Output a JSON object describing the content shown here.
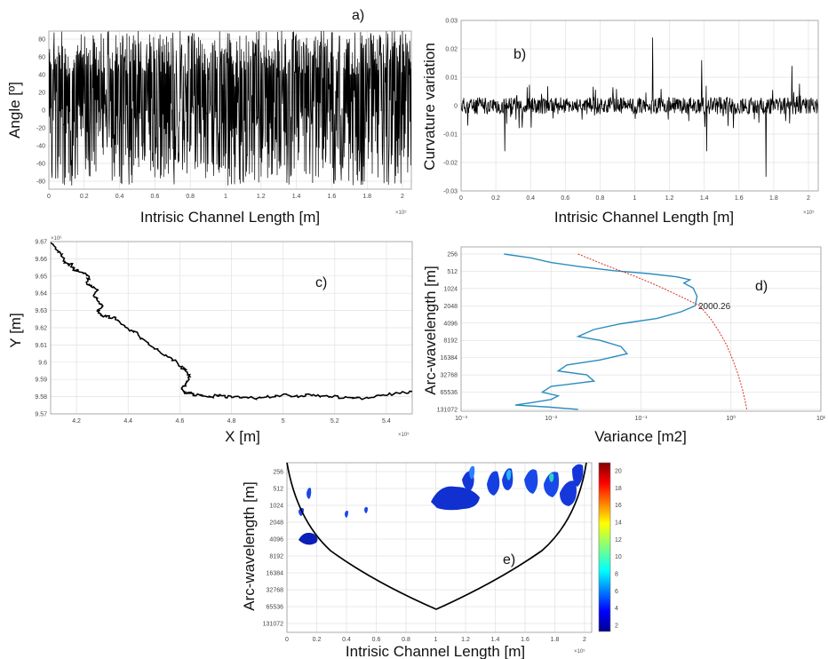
{
  "panel_a": {
    "label": "a)",
    "xlabel": "Intrisic Channel Length [m]",
    "ylabel": "Angle [º]",
    "x_exp": "×10⁵",
    "xticks": [
      "0",
      "0.2",
      "0.4",
      "0.6",
      "0.8",
      "1",
      "1.2",
      "1.4",
      "1.6",
      "1.8",
      "2"
    ],
    "yticks": [
      "80",
      "60",
      "40",
      "20",
      "0",
      "-20",
      "-40",
      "-60",
      "-80"
    ]
  },
  "panel_b": {
    "label": "b)",
    "xlabel": "Intrisic Channel Length [m]",
    "ylabel": "Curvature variation",
    "x_exp": "×10⁵",
    "xticks": [
      "0",
      "0.2",
      "0.4",
      "0.6",
      "0.8",
      "1",
      "1.2",
      "1.4",
      "1.6",
      "1.8",
      "2"
    ],
    "yticks": [
      "0.03",
      "0.02",
      "0.01",
      "0",
      "-0.01",
      "-0.02",
      "-0.03"
    ]
  },
  "panel_c": {
    "label": "c)",
    "xlabel": "X [m]",
    "ylabel": "Y [m]",
    "x_exp": "×10⁵",
    "y_exp": "×10⁶",
    "xticks": [
      "4.2",
      "4.4",
      "4.6",
      "4.8",
      "5",
      "5.2",
      "5.4"
    ],
    "yticks": [
      "9.67",
      "9.66",
      "9.65",
      "9.64",
      "9.63",
      "9.62",
      "9.61",
      "9.6",
      "9.59",
      "9.58",
      "9.57"
    ]
  },
  "panel_d": {
    "label": "d)",
    "xlabel": "Variance [m2]",
    "ylabel": "Arc-wavelength [m]",
    "xticks": [
      "10⁻³",
      "10⁻²",
      "10⁻¹",
      "10⁰",
      "10¹"
    ],
    "yticks": [
      "256",
      "512",
      "1024",
      "2048",
      "4096",
      "8192",
      "16384",
      "32768",
      "65536",
      "131072"
    ],
    "annotation": "2000.26"
  },
  "panel_e": {
    "label": "e)",
    "xlabel": "Intrisic Channel Length [m]",
    "ylabel": "Arc-wavelength [m]",
    "x_exp": "×10⁵",
    "xticks": [
      "0",
      "0.2",
      "0.4",
      "0.6",
      "0.8",
      "1",
      "1.2",
      "1.4",
      "1.6",
      "1.8",
      "2"
    ],
    "yticks": [
      "256",
      "512",
      "1024",
      "2048",
      "4096",
      "8192",
      "16384",
      "32768",
      "65536",
      "131072"
    ],
    "colorbar_ticks": [
      "20",
      "18",
      "16",
      "14",
      "12",
      "10",
      "8",
      "6",
      "4",
      "2"
    ]
  },
  "chart_data": [
    {
      "type": "line",
      "panel": "a",
      "xlim": [
        0,
        2.05
      ],
      "ylim": [
        -90,
        90
      ],
      "description_values": "rapidly oscillating angle between -80 and 90 degrees along channel length",
      "series": [
        {
          "color": "#000000"
        }
      ]
    },
    {
      "type": "line",
      "panel": "b",
      "xlim": [
        0,
        2.05
      ],
      "ylim": [
        -0.03,
        0.03
      ],
      "series": [
        {
          "color": "#000000"
        }
      ],
      "peaks": [
        {
          "x": 1.1,
          "y": 0.024
        },
        {
          "x": 1.38,
          "y": 0.016
        },
        {
          "x": 1.9,
          "y": 0.014
        },
        {
          "x": 1.75,
          "y": -0.025
        },
        {
          "x": 0.25,
          "y": -0.016
        },
        {
          "x": 1.41,
          "y": -0.016
        }
      ]
    },
    {
      "type": "line",
      "panel": "c",
      "xlim": [
        4.1,
        5.5
      ],
      "ylim": [
        9.57,
        9.67
      ],
      "series": [
        {
          "color": "#000000",
          "x": [
            4.1,
            4.13,
            4.15,
            4.16,
            4.18,
            4.19,
            4.22,
            4.25,
            4.24,
            4.26,
            4.28,
            4.27,
            4.29,
            4.3,
            4.28,
            4.3,
            4.33,
            4.36,
            4.39,
            4.42,
            4.45,
            4.49,
            4.52,
            4.55,
            4.58,
            4.6,
            4.62,
            4.64,
            4.63,
            4.62,
            4.61,
            4.62,
            4.64,
            4.66,
            4.69,
            4.72,
            4.75,
            4.78,
            4.82,
            4.85,
            4.9,
            4.95,
            5.0,
            5.05,
            5.1,
            5.15,
            5.2,
            5.25,
            5.3,
            5.35,
            5.4,
            5.45,
            5.5
          ],
          "y": [
            9.669,
            9.664,
            9.66,
            9.657,
            9.657,
            9.654,
            9.652,
            9.65,
            9.646,
            9.644,
            9.642,
            9.638,
            9.635,
            9.632,
            9.63,
            9.627,
            9.626,
            9.625,
            9.62,
            9.618,
            9.614,
            9.61,
            9.606,
            9.603,
            9.601,
            9.598,
            9.596,
            9.592,
            9.589,
            9.587,
            9.585,
            9.582,
            9.582,
            9.581,
            9.581,
            9.58,
            9.581,
            9.58,
            9.58,
            9.58,
            9.579,
            9.58,
            9.581,
            9.58,
            9.581,
            9.58,
            9.58,
            9.579,
            9.579,
            9.58,
            9.581,
            9.582,
            9.583
          ]
        }
      ]
    },
    {
      "type": "line",
      "panel": "d",
      "xscale": "log",
      "xlim": [
        0.001,
        10
      ],
      "ylim": [
        256,
        131072
      ],
      "yscale": "log2-reversed",
      "series": [
        {
          "color": "#2b8cbe",
          "x": [
            0.003,
            0.006,
            0.01,
            0.02,
            0.05,
            0.12,
            0.25,
            0.35,
            0.3,
            0.38,
            0.42,
            0.4,
            0.28,
            0.15,
            0.06,
            0.03,
            0.02,
            0.035,
            0.06,
            0.07,
            0.035,
            0.015,
            0.012,
            0.025,
            0.03,
            0.01,
            0.008,
            0.012,
            0.01,
            0.006,
            0.004,
            0.01,
            0.02
          ],
          "y": [
            256,
            300,
            360,
            420,
            500,
            560,
            640,
            720,
            820,
            1000,
            1400,
            2048,
            2600,
            3400,
            4200,
            5300,
            7000,
            8192,
            10500,
            14000,
            18000,
            22000,
            28000,
            32768,
            42000,
            52000,
            65536,
            76000,
            88000,
            100000,
            110000,
            120000,
            131072
          ]
        },
        {
          "color": "#d7301f",
          "dash": true,
          "x": [
            0.02,
            0.04,
            0.08,
            0.15,
            0.3,
            0.45,
            0.6,
            0.75,
            0.9,
            1.05,
            1.2,
            1.35,
            1.45,
            1.5
          ],
          "y": [
            256,
            400,
            600,
            900,
            1500,
            2048,
            3500,
            6000,
            10000,
            18000,
            32000,
            60000,
            100000,
            131072
          ]
        }
      ]
    },
    {
      "type": "heatmap",
      "panel": "e",
      "xlim": [
        0,
        2.05
      ],
      "ylim": [
        256,
        131072
      ],
      "colorbar": {
        "min": 1,
        "max": 21,
        "colormap": "jet"
      }
    }
  ]
}
